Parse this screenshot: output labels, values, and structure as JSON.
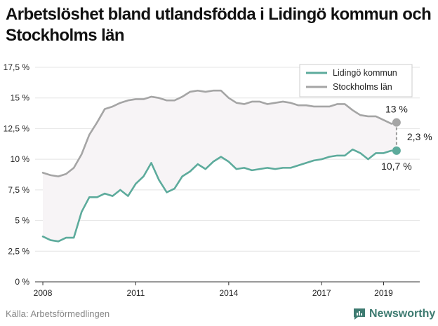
{
  "title": "Arbetslöshet bland utlandsfödda i Lidingö kommun och Stockholms län",
  "source": "Källa: Arbetsförmedlingen",
  "brand": "Newsworthy",
  "chart_data": {
    "type": "line",
    "xlabel": "",
    "ylabel": "",
    "x_ticks": [
      "2008",
      "2011",
      "2014",
      "2017",
      "2019"
    ],
    "y_ticks": [
      "0 %",
      "2,5 %",
      "5 %",
      "7,5 %",
      "10 %",
      "12,5 %",
      "15 %",
      "17,5 %"
    ],
    "ylim": [
      0,
      17.5
    ],
    "xlim": [
      "2007-10",
      "2020-03"
    ],
    "grid": true,
    "legend_position": "top-right",
    "colors": {
      "lidingo": "#5dab9c",
      "stockholm": "#a5a5a5",
      "band": "#f7f4f6"
    },
    "series": [
      {
        "name": "Lidingö kommun",
        "x": [
          "2008-01",
          "2008-04",
          "2008-07",
          "2008-10",
          "2009-01",
          "2009-04",
          "2009-07",
          "2009-10",
          "2010-01",
          "2010-04",
          "2010-07",
          "2010-10",
          "2011-01",
          "2011-04",
          "2011-07",
          "2011-10",
          "2012-01",
          "2012-04",
          "2012-07",
          "2012-10",
          "2013-01",
          "2013-04",
          "2013-07",
          "2013-10",
          "2014-01",
          "2014-04",
          "2014-07",
          "2014-10",
          "2015-01",
          "2015-04",
          "2015-07",
          "2015-10",
          "2016-01",
          "2016-04",
          "2016-07",
          "2016-10",
          "2017-01",
          "2017-04",
          "2017-07",
          "2017-10",
          "2018-01",
          "2018-04",
          "2018-07",
          "2018-10",
          "2019-01",
          "2019-04",
          "2019-06"
        ],
        "values": [
          3.7,
          3.4,
          3.3,
          3.6,
          3.6,
          5.7,
          6.9,
          6.9,
          7.2,
          7.0,
          7.5,
          7.0,
          8.0,
          8.6,
          9.7,
          8.3,
          7.3,
          7.6,
          8.6,
          9.0,
          9.6,
          9.2,
          9.8,
          10.2,
          9.8,
          9.2,
          9.3,
          9.1,
          9.2,
          9.3,
          9.2,
          9.3,
          9.3,
          9.5,
          9.7,
          9.9,
          10.0,
          10.2,
          10.3,
          10.3,
          10.8,
          10.5,
          10.0,
          10.5,
          10.5,
          10.7,
          10.7
        ]
      },
      {
        "name": "Stockholms län",
        "x": [
          "2008-01",
          "2008-04",
          "2008-07",
          "2008-10",
          "2009-01",
          "2009-04",
          "2009-07",
          "2009-10",
          "2010-01",
          "2010-04",
          "2010-07",
          "2010-10",
          "2011-01",
          "2011-04",
          "2011-07",
          "2011-10",
          "2012-01",
          "2012-04",
          "2012-07",
          "2012-10",
          "2013-01",
          "2013-04",
          "2013-07",
          "2013-10",
          "2014-01",
          "2014-04",
          "2014-07",
          "2014-10",
          "2015-01",
          "2015-04",
          "2015-07",
          "2015-10",
          "2016-01",
          "2016-04",
          "2016-07",
          "2016-10",
          "2017-01",
          "2017-04",
          "2017-07",
          "2017-10",
          "2018-01",
          "2018-04",
          "2018-07",
          "2018-10",
          "2019-01",
          "2019-04",
          "2019-06"
        ],
        "values": [
          8.9,
          8.7,
          8.6,
          8.8,
          9.3,
          10.4,
          12.0,
          13.0,
          14.1,
          14.3,
          14.6,
          14.8,
          14.9,
          14.9,
          15.1,
          15.0,
          14.8,
          14.8,
          15.1,
          15.5,
          15.6,
          15.5,
          15.6,
          15.6,
          15.0,
          14.6,
          14.5,
          14.7,
          14.7,
          14.5,
          14.6,
          14.7,
          14.6,
          14.4,
          14.4,
          14.3,
          14.3,
          14.3,
          14.5,
          14.5,
          14.0,
          13.6,
          13.5,
          13.5,
          13.2,
          12.9,
          13.0
        ]
      }
    ],
    "annotations": {
      "stockholm_last": "13 %",
      "lidingo_last": "10,7 %",
      "difference": "2,3 %"
    }
  }
}
